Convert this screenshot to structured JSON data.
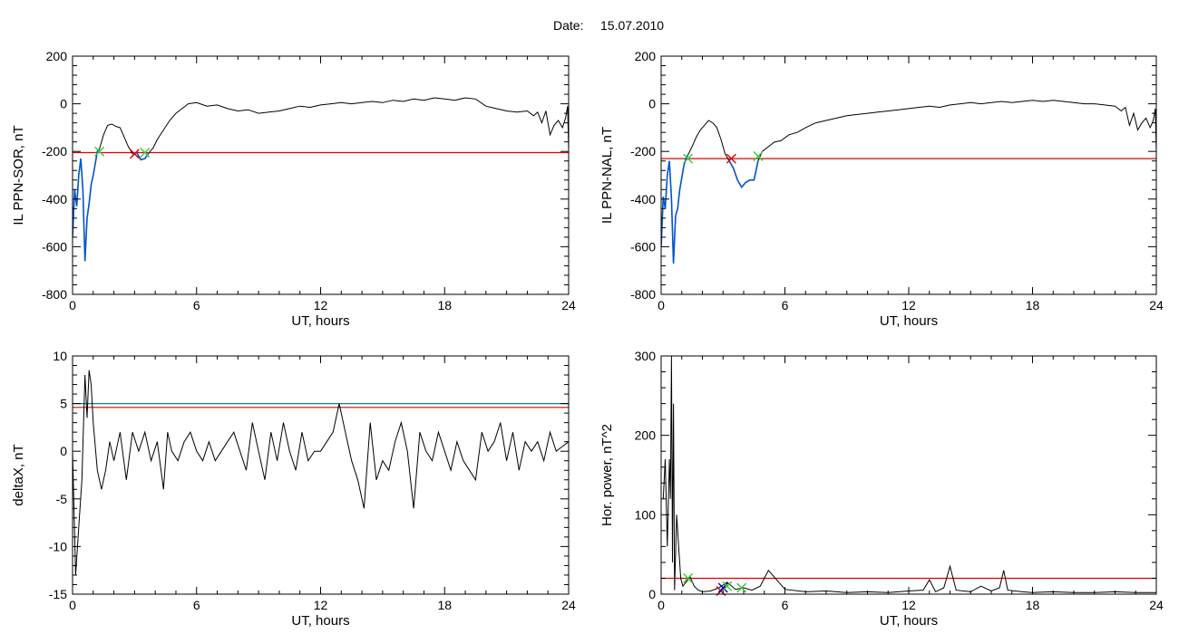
{
  "figure": {
    "title_prefix": "Date:",
    "title_date": "15.07.2010"
  },
  "colors": {
    "frame": "#000000",
    "data_line": "#000000",
    "highlight_line": "#0055cc",
    "threshold_red": "#e00000",
    "threshold_teal": "#008b8b",
    "marker_green": "#33cc33",
    "marker_red": "#dd0000",
    "marker_orange": "#cc6600",
    "marker_blue": "#0000cc"
  },
  "chart_data": [
    {
      "id": "ppn_sor",
      "type": "line",
      "xlabel": "UT, hours",
      "ylabel": "IL PPN-SOR, nT",
      "xlim": [
        0,
        24
      ],
      "ylim": [
        -800,
        200
      ],
      "xticks": [
        0,
        6,
        12,
        18,
        24
      ],
      "yticks": [
        200,
        0,
        -200,
        -400,
        -600,
        -800
      ],
      "x": [
        0,
        0.1,
        0.2,
        0.3,
        0.4,
        0.5,
        0.6,
        0.7,
        0.8,
        0.9,
        1.0,
        1.1,
        1.2,
        1.3,
        1.5,
        1.7,
        1.9,
        2.1,
        2.3,
        2.5,
        2.7,
        2.9,
        3.1,
        3.3,
        3.5,
        3.7,
        3.9,
        4.1,
        4.4,
        4.7,
        5.0,
        5.3,
        5.6,
        6.0,
        6.5,
        7.0,
        7.5,
        8.0,
        8.5,
        9.0,
        9.5,
        10.0,
        10.5,
        11.0,
        11.5,
        12.0,
        12.5,
        13.0,
        13.5,
        14.0,
        14.5,
        15.0,
        15.5,
        16.0,
        16.5,
        17.0,
        17.5,
        18.0,
        18.5,
        19.0,
        19.5,
        20.0,
        20.5,
        21.0,
        21.5,
        22.0,
        22.3,
        22.5,
        22.7,
        22.9,
        23.1,
        23.3,
        23.5,
        23.7,
        23.85,
        23.95,
        24.0
      ],
      "y": [
        -560,
        -360,
        -430,
        -300,
        -230,
        -360,
        -660,
        -480,
        -420,
        -340,
        -300,
        -250,
        -200,
        -190,
        -130,
        -90,
        -85,
        -95,
        -100,
        -140,
        -180,
        -210,
        -205,
        -235,
        -230,
        -205,
        -185,
        -150,
        -110,
        -70,
        -40,
        -20,
        0,
        5,
        -10,
        -5,
        -20,
        -30,
        -25,
        -40,
        -35,
        -30,
        -20,
        -10,
        -15,
        -5,
        0,
        5,
        0,
        5,
        10,
        5,
        15,
        10,
        20,
        15,
        25,
        20,
        15,
        25,
        20,
        -10,
        -20,
        -30,
        -35,
        -30,
        -50,
        -35,
        -80,
        -30,
        -130,
        -90,
        -70,
        -100,
        -60,
        -10,
        -190
      ],
      "highlight_segments": [
        [
          0.0,
          1.3
        ],
        [
          2.9,
          3.7
        ]
      ],
      "threshold_lines": [
        {
          "y": -205,
          "color": "#e00000"
        }
      ],
      "markers": [
        {
          "x": 1.3,
          "y": -200,
          "color": "#33cc33"
        },
        {
          "x": 3.0,
          "y": -210,
          "color": "#dd0000"
        },
        {
          "x": 3.5,
          "y": -205,
          "color": "#33cc33"
        }
      ]
    },
    {
      "id": "ppn_nal",
      "type": "line",
      "xlabel": "UT, hours",
      "ylabel": "IL PPN-NAL, nT",
      "xlim": [
        0,
        24
      ],
      "ylim": [
        -800,
        200
      ],
      "xticks": [
        0,
        6,
        12,
        18,
        24
      ],
      "yticks": [
        200,
        0,
        -200,
        -400,
        -600,
        -800
      ],
      "x": [
        0,
        0.1,
        0.2,
        0.3,
        0.4,
        0.5,
        0.6,
        0.7,
        0.8,
        0.9,
        1.0,
        1.1,
        1.2,
        1.3,
        1.5,
        1.7,
        1.9,
        2.1,
        2.3,
        2.5,
        2.7,
        2.9,
        3.1,
        3.3,
        3.5,
        3.7,
        3.9,
        4.1,
        4.3,
        4.5,
        4.7,
        4.9,
        5.2,
        5.5,
        5.8,
        6.2,
        6.6,
        7.0,
        7.5,
        8.0,
        8.5,
        9.0,
        9.5,
        10.0,
        10.5,
        11.0,
        11.5,
        12.0,
        12.5,
        13.0,
        13.5,
        14.0,
        14.5,
        15.0,
        15.5,
        16.0,
        16.5,
        17.0,
        17.5,
        18.0,
        18.5,
        19.0,
        19.5,
        20.0,
        20.5,
        21.0,
        21.5,
        22.0,
        22.3,
        22.5,
        22.7,
        22.9,
        23.1,
        23.3,
        23.5,
        23.7,
        23.85,
        23.95,
        24.0
      ],
      "y": [
        -600,
        -390,
        -440,
        -300,
        -240,
        -400,
        -670,
        -470,
        -440,
        -360,
        -310,
        -260,
        -230,
        -215,
        -180,
        -140,
        -110,
        -90,
        -70,
        -80,
        -100,
        -150,
        -210,
        -240,
        -270,
        -320,
        -350,
        -330,
        -320,
        -320,
        -240,
        -200,
        -180,
        -160,
        -155,
        -130,
        -120,
        -100,
        -80,
        -70,
        -60,
        -50,
        -45,
        -40,
        -35,
        -30,
        -25,
        -20,
        -15,
        -10,
        -15,
        -5,
        0,
        5,
        0,
        5,
        10,
        5,
        10,
        15,
        10,
        15,
        10,
        5,
        0,
        0,
        -5,
        -10,
        -30,
        -15,
        -90,
        -40,
        -110,
        -80,
        -60,
        -100,
        -70,
        -20,
        -200
      ],
      "highlight_segments": [
        [
          0.0,
          1.3
        ],
        [
          3.3,
          4.7
        ]
      ],
      "threshold_lines": [
        {
          "y": -230,
          "color": "#e00000"
        }
      ],
      "markers": [
        {
          "x": 1.3,
          "y": -230,
          "color": "#33cc33"
        },
        {
          "x": 3.4,
          "y": -230,
          "color": "#dd0000"
        },
        {
          "x": 4.7,
          "y": -220,
          "color": "#33cc33"
        }
      ]
    },
    {
      "id": "delta_x",
      "type": "line",
      "xlabel": "UT, hours",
      "ylabel": "deltaX, nT",
      "xlim": [
        0,
        24
      ],
      "ylim": [
        -15,
        10
      ],
      "xticks": [
        0,
        6,
        12,
        18,
        24
      ],
      "yticks": [
        10,
        5,
        0,
        -5,
        -10,
        -15
      ],
      "x": [
        0,
        0.15,
        0.3,
        0.45,
        0.6,
        0.7,
        0.8,
        0.9,
        1.0,
        1.2,
        1.4,
        1.6,
        1.8,
        2.0,
        2.3,
        2.6,
        2.9,
        3.2,
        3.5,
        3.8,
        4.1,
        4.4,
        4.6,
        4.8,
        5.1,
        5.4,
        5.7,
        6.0,
        6.3,
        6.6,
        6.9,
        7.2,
        7.5,
        7.8,
        8.1,
        8.4,
        8.7,
        9.0,
        9.3,
        9.6,
        9.9,
        10.2,
        10.5,
        10.8,
        11.1,
        11.4,
        11.7,
        12.0,
        12.3,
        12.6,
        12.9,
        13.2,
        13.5,
        13.8,
        14.1,
        14.4,
        14.7,
        15.0,
        15.3,
        15.6,
        15.9,
        16.2,
        16.5,
        16.8,
        17.1,
        17.4,
        17.7,
        18.0,
        18.3,
        18.6,
        18.9,
        19.2,
        19.5,
        19.8,
        20.1,
        20.4,
        20.7,
        21.0,
        21.3,
        21.6,
        21.9,
        22.2,
        22.5,
        22.8,
        23.1,
        23.4,
        23.7,
        24.0
      ],
      "y": [
        0,
        -13,
        -8,
        -3,
        8,
        3.5,
        8.5,
        7,
        3,
        -2,
        -4,
        -2,
        1,
        -1,
        2,
        -3,
        2,
        0,
        2,
        -1,
        1,
        -4,
        2,
        0,
        -1,
        1,
        2,
        0,
        -1,
        1,
        -1,
        0,
        1,
        2,
        0,
        -2,
        3,
        0,
        -3,
        2,
        -1,
        3,
        0,
        -2,
        2,
        -1,
        0,
        0,
        1,
        2,
        5,
        2,
        -1,
        -3,
        -6,
        3,
        -3,
        -1,
        -2,
        1,
        3,
        0,
        -6,
        2,
        0,
        -1,
        2,
        0,
        -2,
        1,
        -1,
        -2,
        -3,
        2,
        0,
        1,
        3,
        -1,
        2,
        -2,
        1,
        0,
        1,
        -1,
        2,
        0,
        0.5,
        1
      ],
      "threshold_lines": [
        {
          "y": 5.0,
          "color": "#008b8b"
        },
        {
          "y": 4.6,
          "color": "#e00000"
        }
      ],
      "markers": []
    },
    {
      "id": "hor_power",
      "type": "line",
      "xlabel": "UT, hours",
      "ylabel": "Hor. power, nT^2",
      "xlim": [
        0,
        24
      ],
      "ylim": [
        0,
        300
      ],
      "xticks": [
        0,
        6,
        12,
        18,
        24
      ],
      "yticks": [
        300,
        200,
        100,
        0
      ],
      "x": [
        0.1,
        0.2,
        0.3,
        0.4,
        0.45,
        0.5,
        0.55,
        0.6,
        0.65,
        0.75,
        0.85,
        0.95,
        1.05,
        1.2,
        1.4,
        1.6,
        1.8,
        2.0,
        2.4,
        2.8,
        3.2,
        3.6,
        4.0,
        4.4,
        4.8,
        5.2,
        6.0,
        7.0,
        8.0,
        9.0,
        10.0,
        11.0,
        12.0,
        12.7,
        13.0,
        13.3,
        13.7,
        14.0,
        14.3,
        15.0,
        15.5,
        16.0,
        16.4,
        16.6,
        16.8,
        17.5,
        18.0,
        19.0,
        20.0,
        21.0,
        22.0,
        23.0,
        24.0
      ],
      "y": [
        120,
        170,
        60,
        170,
        120,
        300,
        40,
        240,
        5,
        100,
        60,
        20,
        10,
        15,
        22,
        10,
        5,
        3,
        4,
        8,
        15,
        6,
        8,
        5,
        10,
        30,
        6,
        3,
        4,
        2,
        3,
        2,
        4,
        5,
        18,
        3,
        8,
        35,
        5,
        3,
        10,
        4,
        8,
        30,
        5,
        3,
        2,
        3,
        2,
        2,
        3,
        2,
        2
      ],
      "threshold_lines": [
        {
          "y": 20,
          "color": "#e00000"
        }
      ],
      "markers": [
        {
          "x": 1.3,
          "y": 20,
          "color": "#33cc33"
        },
        {
          "x": 2.9,
          "y": 4,
          "color": "#dd0000"
        },
        {
          "x": 3.0,
          "y": 8,
          "color": "#0000cc"
        },
        {
          "x": 3.2,
          "y": 10,
          "color": "#33cc33"
        },
        {
          "x": 3.9,
          "y": 8,
          "color": "#33cc33"
        }
      ]
    }
  ]
}
